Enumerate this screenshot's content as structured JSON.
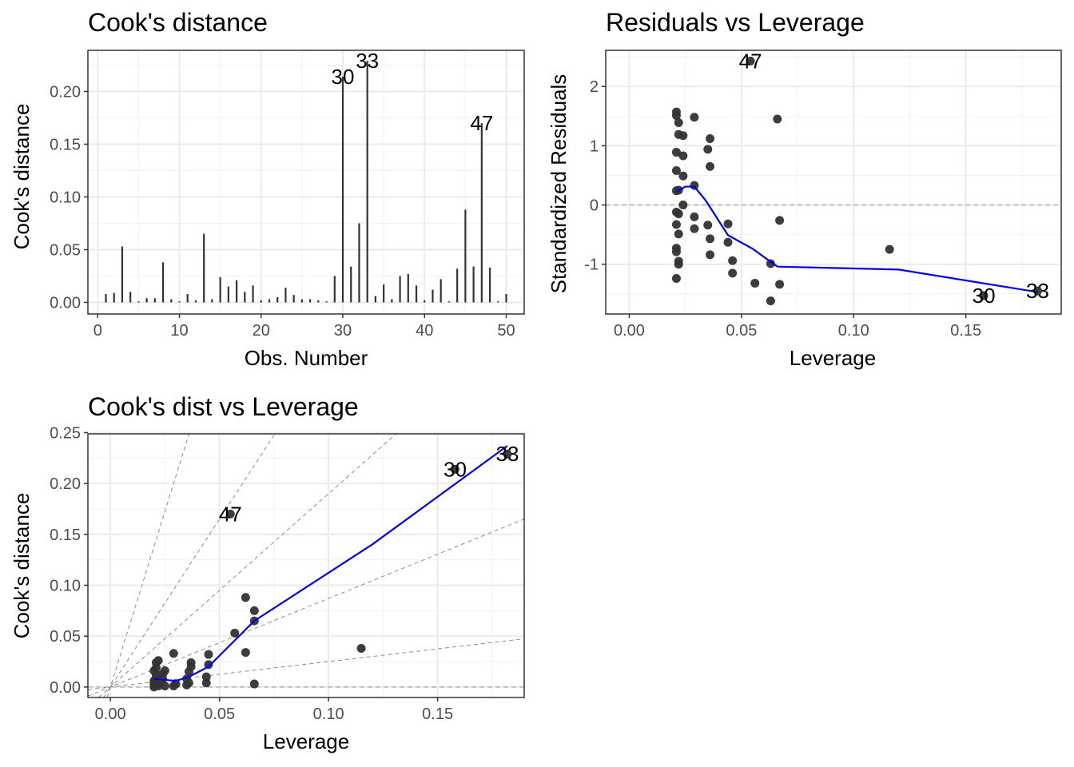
{
  "chart_data": [
    {
      "type": "bar",
      "title": "Cook's distance",
      "xlabel": "Obs. Number",
      "ylabel": "Cook's distance",
      "xlim": [
        -1.2,
        52.2
      ],
      "ylim": [
        -0.011,
        0.239
      ],
      "xticks": [
        0,
        10,
        20,
        30,
        40,
        50
      ],
      "yticks": [
        0.0,
        0.05,
        0.1,
        0.15,
        0.2
      ],
      "ytick_labels": [
        "0.00",
        "0.05",
        "0.10",
        "0.15",
        "0.20"
      ],
      "grid": true,
      "x": [
        1,
        2,
        3,
        4,
        5,
        6,
        7,
        8,
        9,
        10,
        11,
        12,
        13,
        14,
        15,
        16,
        17,
        18,
        19,
        20,
        21,
        22,
        23,
        24,
        25,
        26,
        27,
        28,
        29,
        30,
        31,
        32,
        33,
        34,
        35,
        36,
        37,
        38,
        39,
        40,
        41,
        42,
        43,
        44,
        45,
        46,
        47,
        48,
        49,
        50
      ],
      "values": [
        0.008,
        0.009,
        0.053,
        0.01,
        0.001,
        0.004,
        0.004,
        0.038,
        0.003,
        0.001,
        0.008,
        0.002,
        0.065,
        0.003,
        0.024,
        0.015,
        0.021,
        0.01,
        0.016,
        0.002,
        0.003,
        0.005,
        0.014,
        0.007,
        0.003,
        0.003,
        0.002,
        0.001,
        0.025,
        0.214,
        0.034,
        0.075,
        0.229,
        0.006,
        0.017,
        0.003,
        0.025,
        0.027,
        0.016,
        0.002,
        0.012,
        0.022,
        0.001,
        0.032,
        0.088,
        0.034,
        0.17,
        0.033,
        0.001,
        0.008
      ],
      "labels": [
        {
          "obs": 30,
          "text": "30"
        },
        {
          "obs": 33,
          "text": "33"
        },
        {
          "obs": 47,
          "text": "47"
        }
      ]
    },
    {
      "type": "scatter",
      "title": "Residuals vs Leverage",
      "xlabel": "Leverage",
      "ylabel": "Standardized Residuals",
      "xlim": [
        -0.0105,
        0.1925
      ],
      "ylim": [
        -1.84,
        2.61
      ],
      "xticks": [
        0.0,
        0.05,
        0.1,
        0.15
      ],
      "xtick_labels": [
        "0.00",
        "0.05",
        "0.10",
        "0.15"
      ],
      "yticks": [
        -1,
        0,
        1,
        2
      ],
      "ytick_labels": [
        "-1",
        "0",
        "1",
        "2"
      ],
      "grid": true,
      "reference_line_y": 0,
      "points": [
        [
          0.021,
          1.57
        ],
        [
          0.021,
          1.51
        ],
        [
          0.022,
          1.39
        ],
        [
          0.022,
          1.19
        ],
        [
          0.024,
          1.17
        ],
        [
          0.021,
          0.89
        ],
        [
          0.024,
          0.83
        ],
        [
          0.021,
          0.58
        ],
        [
          0.024,
          0.49
        ],
        [
          0.021,
          0.24
        ],
        [
          0.022,
          0.25
        ],
        [
          0.029,
          0.33
        ],
        [
          0.024,
          0.0
        ],
        [
          0.021,
          -0.12
        ],
        [
          0.022,
          -0.15
        ],
        [
          0.021,
          -0.33
        ],
        [
          0.022,
          -0.49
        ],
        [
          0.021,
          -0.73
        ],
        [
          0.021,
          -0.79
        ],
        [
          0.022,
          -0.95
        ],
        [
          0.022,
          -1.0
        ],
        [
          0.021,
          -1.24
        ],
        [
          0.029,
          1.48
        ],
        [
          0.035,
          0.94
        ],
        [
          0.036,
          1.12
        ],
        [
          0.036,
          0.65
        ],
        [
          0.029,
          -0.2
        ],
        [
          0.029,
          -0.4
        ],
        [
          0.035,
          -0.34
        ],
        [
          0.036,
          -0.57
        ],
        [
          0.036,
          -0.84
        ],
        [
          0.044,
          -0.32
        ],
        [
          0.044,
          -0.63
        ],
        [
          0.046,
          -0.94
        ],
        [
          0.046,
          -1.15
        ],
        [
          0.056,
          -1.32
        ],
        [
          0.063,
          -0.99
        ],
        [
          0.063,
          -1.62
        ],
        [
          0.066,
          1.45
        ],
        [
          0.067,
          -0.26
        ],
        [
          0.067,
          -1.34
        ],
        [
          0.116,
          -0.75
        ],
        [
          0.054,
          2.43
        ],
        [
          0.158,
          -1.53
        ],
        [
          0.182,
          -1.45
        ]
      ],
      "smooth": [
        [
          0.021,
          0.22
        ],
        [
          0.025,
          0.31
        ],
        [
          0.029,
          0.31
        ],
        [
          0.034,
          0.08
        ],
        [
          0.044,
          -0.51
        ],
        [
          0.055,
          -0.74
        ],
        [
          0.066,
          -1.04
        ],
        [
          0.12,
          -1.09
        ],
        [
          0.182,
          -1.47
        ]
      ],
      "labels": [
        {
          "x": 0.054,
          "y": 2.43,
          "text": "47"
        },
        {
          "x": 0.158,
          "y": -1.53,
          "text": "30"
        },
        {
          "x": 0.182,
          "y": -1.45,
          "text": "33"
        }
      ]
    },
    {
      "type": "scatter",
      "title": "Cook's dist vs Leverage",
      "xlabel": "Leverage",
      "ylabel": "Cook's distance",
      "xlim": [
        -0.0103,
        0.1897
      ],
      "ylim": [
        -0.0103,
        0.2488
      ],
      "xticks": [
        0.0,
        0.05,
        0.1,
        0.15
      ],
      "xtick_labels": [
        "0.00",
        "0.05",
        "0.10",
        "0.15"
      ],
      "yticks": [
        0.0,
        0.05,
        0.1,
        0.15,
        0.2,
        0.25
      ],
      "ytick_labels": [
        "0.00",
        "0.05",
        "0.10",
        "0.15",
        "0.20",
        "0.25"
      ],
      "grid": true,
      "reference_line_y": 0,
      "contour_slopes": [
        0.25,
        0.87,
        1.9,
        3.3,
        6.9
      ],
      "points": [
        [
          0.02,
          0.0
        ],
        [
          0.02,
          0.003
        ],
        [
          0.02,
          0.006
        ],
        [
          0.021,
          0.009
        ],
        [
          0.021,
          0.012
        ],
        [
          0.02,
          0.016
        ],
        [
          0.021,
          0.019
        ],
        [
          0.021,
          0.024
        ],
        [
          0.022,
          0.026
        ],
        [
          0.022,
          0.001
        ],
        [
          0.023,
          0.004
        ],
        [
          0.024,
          0.008
        ],
        [
          0.024,
          0.013
        ],
        [
          0.025,
          0.016
        ],
        [
          0.025,
          0.001
        ],
        [
          0.029,
          0.033
        ],
        [
          0.029,
          0.001
        ],
        [
          0.03,
          0.003
        ],
        [
          0.035,
          0.002
        ],
        [
          0.036,
          0.004
        ],
        [
          0.035,
          0.008
        ],
        [
          0.036,
          0.015
        ],
        [
          0.037,
          0.02
        ],
        [
          0.037,
          0.024
        ],
        [
          0.044,
          0.004
        ],
        [
          0.044,
          0.01
        ],
        [
          0.045,
          0.022
        ],
        [
          0.045,
          0.032
        ],
        [
          0.057,
          0.053
        ],
        [
          0.062,
          0.034
        ],
        [
          0.062,
          0.088
        ],
        [
          0.066,
          0.075
        ],
        [
          0.066,
          0.065
        ],
        [
          0.066,
          0.003
        ],
        [
          0.115,
          0.038
        ],
        [
          0.055,
          0.17
        ],
        [
          0.158,
          0.214
        ],
        [
          0.182,
          0.229
        ]
      ],
      "smooth": [
        [
          0.02,
          0.008
        ],
        [
          0.025,
          0.007
        ],
        [
          0.03,
          0.006
        ],
        [
          0.036,
          0.01
        ],
        [
          0.045,
          0.02
        ],
        [
          0.066,
          0.065
        ],
        [
          0.12,
          0.14
        ],
        [
          0.182,
          0.237
        ]
      ],
      "labels": [
        {
          "x": 0.055,
          "y": 0.17,
          "text": "47"
        },
        {
          "x": 0.158,
          "y": 0.214,
          "text": "30"
        },
        {
          "x": 0.182,
          "y": 0.229,
          "text": "33"
        }
      ]
    }
  ]
}
